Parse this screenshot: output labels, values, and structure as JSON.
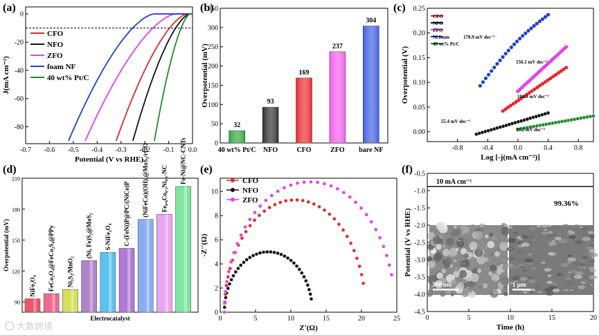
{
  "chart_data": [
    {
      "panel": "(a)",
      "type": "line",
      "xlabel": "Potential (V vs RHE)",
      "ylabel": "J(mA cm⁻²)",
      "xlim": [
        -0.7,
        0.0
      ],
      "ylim": [
        -90,
        0
      ],
      "xticks": [
        "-0.7",
        "-0.6",
        "-0.5",
        "-0.4",
        "-0.3",
        "-0.2",
        "-0.1",
        "0.0"
      ],
      "yticks": [
        "0",
        "-20",
        "-40",
        "-60",
        "-80"
      ],
      "reference_line_y": -10,
      "series": [
        {
          "name": "CFO",
          "color": "#e8262c",
          "onset": -0.02,
          "end": [
            -0.32,
            -90
          ]
        },
        {
          "name": "NFO",
          "color": "#111111",
          "onset": -0.01,
          "end": [
            -0.25,
            -90
          ]
        },
        {
          "name": "ZFO",
          "color": "#e83ee6",
          "onset": -0.07,
          "end": [
            -0.45,
            -90
          ]
        },
        {
          "name": "foam NF",
          "color": "#1c3fd6",
          "onset": -0.16,
          "end": [
            -0.52,
            -90
          ]
        },
        {
          "name": "40 wt% Pt/C",
          "color": "#1f8a2e",
          "onset": -0.01,
          "end": [
            -0.16,
            -90
          ]
        }
      ]
    },
    {
      "panel": "(b)",
      "type": "bar",
      "ylabel": "Overpotential (mV)",
      "ylim": [
        0,
        350
      ],
      "yticks": [
        "0",
        "50",
        "100",
        "150",
        "200",
        "250",
        "300",
        "350"
      ],
      "categories": [
        "40 wt% Pt/C",
        "NFO",
        "CFO",
        "ZFO",
        "bare NF"
      ],
      "values": [
        32,
        93,
        169,
        237,
        304
      ],
      "value_labels": [
        "32",
        "93",
        "169",
        "237",
        "304"
      ],
      "colors": [
        "#2fa33a",
        "#2a2a2a",
        "#e8262c",
        "#ef5ae9",
        "#3d5be0"
      ]
    },
    {
      "panel": "(c)",
      "type": "scatter",
      "xlabel": "Log [-j(mA cm⁻²)]",
      "ylabel": "Overpotential (V)",
      "xlim": [
        -1.2,
        1.0
      ],
      "ylim": [
        -0.02,
        0.25
      ],
      "xticks": [
        "-0.8",
        "-0.4",
        "0.0",
        "0.4",
        "0.8"
      ],
      "yticks": [
        "0.00",
        "0.05",
        "0.10",
        "0.15",
        "0.20",
        "0.25"
      ],
      "series": [
        {
          "name": "CFO",
          "color": "#e8262c",
          "x": [
            -0.2,
            0.64
          ],
          "y": [
            0.042,
            0.13
          ],
          "slope_label": "104.6 mV dec⁻¹"
        },
        {
          "name": "NFO",
          "color": "#111111",
          "x": [
            -0.55,
            0.4
          ],
          "y": [
            -0.005,
            0.038
          ],
          "slope_label": "55.4 mV dec⁻¹"
        },
        {
          "name": "ZFO",
          "color": "#e83ee6",
          "x": [
            0.0,
            0.64
          ],
          "y": [
            0.082,
            0.172
          ],
          "slope_label": "156.1 mV dec⁻¹"
        },
        {
          "name": "Ni foam",
          "color": "#1c3fd6",
          "x": [
            -0.5,
            0.4
          ],
          "y": [
            0.093,
            0.237
          ],
          "slope_label": "170.9 mV dec⁻¹"
        },
        {
          "name": "40 wt% Pt/C",
          "color": "#1f8a2e",
          "x": [
            0.0,
            1.0
          ],
          "y": [
            0.005,
            0.032
          ],
          "slope_label": "33.2 mV dec⁻¹"
        }
      ]
    },
    {
      "panel": "(d)",
      "type": "bar",
      "xlabel": "Electrocatalyst",
      "ylabel": "Overpotential (mV)",
      "ylim": [
        80,
        210
      ],
      "yticks": [
        "90",
        "120",
        "150",
        "180",
        "210"
      ],
      "categories": [
        "NiFe₂O₄",
        "FeCo₂O₄@FeCo₂S₄@PPy",
        "Ni₃S₂/MnO₂",
        "(Ni, Fe)S₂@MoS₂",
        "S-NiFe₂O₄",
        "C-(FeNi)P@PC/(NiCo)P",
        "(NiFeCo)(OH)ₓ@MoS₂/rGO",
        "Fe₀.₈Co₀.₁Ni₀.₁-NC",
        "Fe-Ni@NC-CNTs"
      ],
      "values": [
        93,
        98,
        102,
        130,
        138,
        142,
        170,
        175,
        202
      ],
      "colors": [
        "#e8576a",
        "#f06a8e",
        "#d4e05a",
        "#b084c8",
        "#5cc1ee",
        "#b07ad6",
        "#88aef0",
        "#e9a4f2",
        "#7fe6a0"
      ]
    },
    {
      "panel": "(e)",
      "type": "scatter",
      "xlabel": "Z'(Ω)",
      "ylabel": "-Z''(Ω)",
      "xlim": [
        0,
        25
      ],
      "ylim": [
        0,
        11
      ],
      "xticks": [
        "0",
        "5",
        "10",
        "15",
        "20",
        "25"
      ],
      "yticks": [
        "0",
        "2",
        "4",
        "6",
        "8",
        "10"
      ],
      "series": [
        {
          "name": "CFO",
          "color": "#e8262c",
          "x_start": 0.6,
          "x_end": 20.2,
          "peak": 9.3,
          "end_y": 2.4
        },
        {
          "name": "NFO",
          "color": "#111111",
          "x_start": 0.6,
          "x_end": 12.8,
          "peak": 5.0,
          "end_y": 1.1
        },
        {
          "name": "ZFO",
          "color": "#e83ee6",
          "x_start": 0.6,
          "x_end": 24.3,
          "peak": 10.8,
          "end_y": 3.1
        }
      ]
    },
    {
      "panel": "(f)",
      "type": "line",
      "xlabel": "Time (h)",
      "ylabel": "Potential (V vs RHE)",
      "xlim": [
        0,
        20
      ],
      "ylim": [
        -4.5,
        -0.5
      ],
      "xticks": [
        "0",
        "5",
        "10",
        "15",
        "20"
      ],
      "yticks": [
        "-0.5",
        "-1.0",
        "-1.5",
        "-2.0",
        "-2.5",
        "-3.0",
        "-3.5",
        "-4.0",
        "-4.5"
      ],
      "series": [
        {
          "name": "stability",
          "color": "#111111",
          "x": [
            0,
            20
          ],
          "y": [
            -0.88,
            -0.88
          ]
        }
      ],
      "annotations": [
        "10 mA cm⁻²",
        "99.36%"
      ],
      "scale_bars": [
        "300 nm",
        "1 μm"
      ]
    }
  ],
  "panels": {
    "a": {
      "label": "(a)",
      "legend": [
        "CFO",
        "NFO",
        "ZFO",
        "foam NF",
        "40 wt% Pt/C"
      ]
    },
    "b": {
      "label": "(b)"
    },
    "c": {
      "label": "(c)",
      "legend": [
        "CFO",
        "NFO",
        "ZFO",
        "Ni foam",
        "40 wt% Pt/C"
      ]
    },
    "d": {
      "label": "(d)"
    },
    "e": {
      "label": "(e)",
      "legend": [
        "CFO",
        "NFO",
        "ZFO"
      ]
    },
    "f": {
      "label": "(f)"
    }
  },
  "watermark": "大数跨境"
}
